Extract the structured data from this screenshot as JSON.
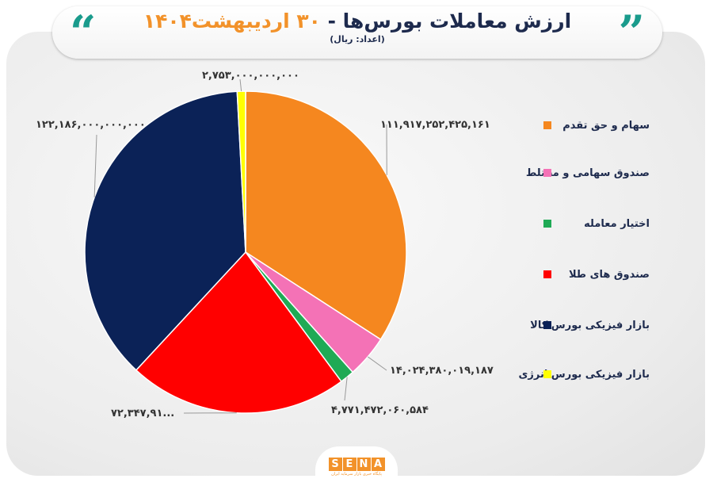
{
  "header": {
    "title_main": "ارزش معاملات بورس‌ها - ",
    "title_day": "۳۰ اردیبهشت",
    "title_year": "۱۴۰۴",
    "subtitle": "(اعداد: ریال)",
    "quote_left": "“",
    "quote_right": "”"
  },
  "logo": {
    "text": "SENA",
    "letters": [
      "S",
      "E",
      "N",
      "A"
    ],
    "tagline": "پایگاه خبری بازار سرمایه ایران"
  },
  "chart_data": {
    "type": "pie",
    "title": "ارزش معاملات بورس‌ها - ۳۰ اردیبهشت۱۴۰۴",
    "unit": "ریال",
    "legend_position": "right",
    "slices": [
      {
        "name": "سهام و حق تقدم",
        "value": 111917252425161,
        "label": "۱۱۱,۹۱۷,۲۵۲,۴۲۵,۱۶۱",
        "color": "#f5871f"
      },
      {
        "name": "صندوق سهامی و مختلط",
        "value": 14024380019187,
        "label": "۱۴,۰۲۴,۳۸۰,۰۱۹,۱۸۷",
        "color": "#f472b6"
      },
      {
        "name": "اختیار معامله",
        "value": 4771472060584,
        "label": "۴,۷۷۱,۴۷۲,۰۶۰,۵۸۴",
        "color": "#1faa55"
      },
      {
        "name": "صندوق های طلا",
        "value": 72347910000000,
        "label": "۷۲,۳۴۷,۹۱...",
        "color": "#ff0000"
      },
      {
        "name": "بازار فیزیکی بورس کالا",
        "value": 122186000000000,
        "label": "۱۲۲,۱۸۶,۰۰۰,۰۰۰,۰۰۰",
        "color": "#0b2257"
      },
      {
        "name": "بازار فیزیکی بورس انرژی",
        "value": 2753000000000,
        "label": "۲,۷۵۳,۰۰۰,۰۰۰,۰۰۰",
        "color": "#ffff00"
      }
    ]
  }
}
